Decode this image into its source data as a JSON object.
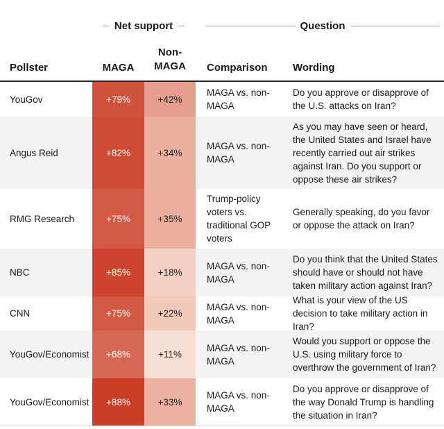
{
  "header": {
    "net_support": "Net support",
    "question": "Question",
    "col_pollster": "Pollster",
    "col_maga": "MAGA",
    "col_non_maga": "Non-MAGA",
    "col_comparison": "Comparison",
    "col_wording": "Wording"
  },
  "colors": {
    "scale_low": "#fcebe1",
    "scale_high": "#c93a22"
  },
  "chart_data": {
    "type": "table",
    "columns": [
      "Pollster",
      "MAGA",
      "Non-MAGA",
      "Comparison",
      "Wording"
    ],
    "rows": [
      {
        "pollster": "YouGov",
        "maga": 79,
        "non_maga": 42,
        "maga_label": "+79%",
        "non_maga_label": "+42%",
        "comparison": "MAGA vs. non-MAGA",
        "wording": "Do you approve or disapprove of the U.S. attacks on Iran?"
      },
      {
        "pollster": "Angus Reid",
        "maga": 82,
        "non_maga": 34,
        "maga_label": "+82%",
        "non_maga_label": "+34%",
        "comparison": "MAGA vs. non-MAGA",
        "wording": "As you may have seen or heard, the United States and Israel have recently carried out air strikes against Iran. Do you support or oppose these air strikes?"
      },
      {
        "pollster": "RMG Research",
        "maga": 75,
        "non_maga": 35,
        "maga_label": "+75%",
        "non_maga_label": "+35%",
        "comparison": "Trump-policy voters vs. traditional GOP voters",
        "wording": "Generally speaking, do you favor or oppose the attack on Iran?"
      },
      {
        "pollster": "NBC",
        "maga": 85,
        "non_maga": 18,
        "maga_label": "+85%",
        "non_maga_label": "+18%",
        "comparison": "MAGA vs. non-MAGA",
        "wording": "Do you think that the United States should have or should not have taken military action against Iran?"
      },
      {
        "pollster": "CNN",
        "maga": 75,
        "non_maga": 22,
        "maga_label": "+75%",
        "non_maga_label": "+22%",
        "comparison": "MAGA vs. non-MAGA",
        "wording": "What is your view of the US decision to take military action in Iran?"
      },
      {
        "pollster": "YouGov/Economist",
        "maga": 68,
        "non_maga": 11,
        "maga_label": "+68%",
        "non_maga_label": "+11%",
        "comparison": "MAGA vs. non-MAGA",
        "wording": "Would you support or oppose the U.S. using military force to overthrow the government of Iran?"
      },
      {
        "pollster": "YouGov/Economist",
        "maga": 88,
        "non_maga": 33,
        "maga_label": "+88%",
        "non_maga_label": "+33%",
        "comparison": "MAGA vs. non-MAGA",
        "wording": "Do you approve or disapprove of the way Donald Trump is handling the situation in Iran?"
      }
    ]
  }
}
